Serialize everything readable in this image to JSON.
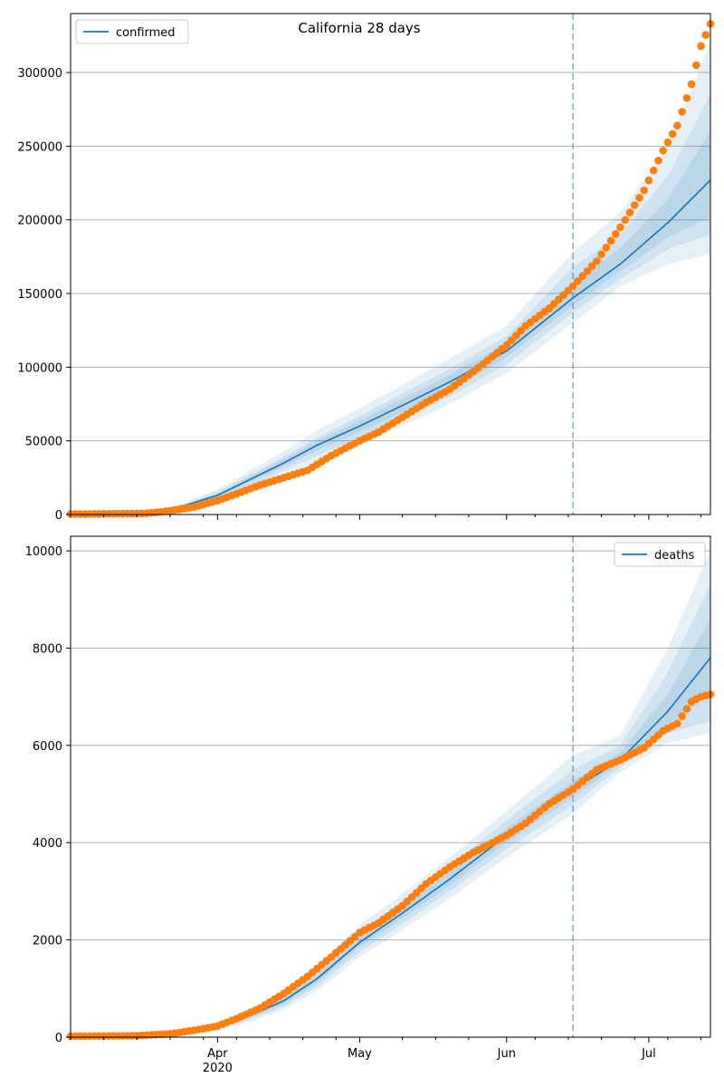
{
  "title": "California 28 days",
  "colors": {
    "model": "#1f77b4",
    "observed": "#ff7f0e",
    "band": "#1f77b4",
    "cutoff": "#1f77b4",
    "grid": "#b0b0b0"
  },
  "chart_data": [
    {
      "type": "line",
      "panel": "top",
      "legend": "top-left",
      "legend_label": "confirmed",
      "x_range": [
        "2020-03-01",
        "2020-07-14"
      ],
      "ylim": [
        0,
        340000
      ],
      "yticks": [
        0,
        50000,
        100000,
        150000,
        200000,
        250000,
        300000
      ],
      "ytick_labels": [
        "0",
        "50000",
        "100000",
        "150000",
        "200000",
        "250000",
        "300000"
      ],
      "grid": "horizontal",
      "forecast_start": "2020-06-15",
      "model": {
        "x": [
          "2020-03-01",
          "2020-03-15",
          "2020-03-20",
          "2020-03-25",
          "2020-04-01",
          "2020-04-08",
          "2020-04-15",
          "2020-04-22",
          "2020-05-01",
          "2020-05-10",
          "2020-05-20",
          "2020-06-01",
          "2020-06-15",
          "2020-06-25",
          "2020-07-05",
          "2020-07-14"
        ],
        "y": [
          0,
          1500,
          3000,
          6000,
          13000,
          24000,
          35000,
          47000,
          60000,
          74000,
          90000,
          111000,
          147000,
          170000,
          198000,
          227000
        ]
      },
      "bands": [
        {
          "lower": [
            0,
            1200,
            2500,
            4500,
            10000,
            18000,
            27000,
            36000,
            48000,
            60000,
            75000,
            96000,
            130000,
            155000,
            170000,
            177000
          ],
          "upper": [
            0,
            1800,
            3800,
            8000,
            17000,
            30000,
            43000,
            57000,
            72000,
            88000,
            106000,
            128000,
            178000,
            205000,
            250000,
            320000
          ]
        },
        {
          "lower": [
            0,
            1300,
            2700,
            5000,
            11000,
            20000,
            30000,
            40000,
            52000,
            65000,
            80000,
            102000,
            137000,
            160000,
            180000,
            190000
          ],
          "upper": [
            0,
            1700,
            3400,
            7200,
            15500,
            27500,
            39500,
            52000,
            67000,
            82000,
            99000,
            121000,
            168000,
            190000,
            230000,
            285000
          ]
        },
        {
          "lower": [
            0,
            1400,
            2800,
            5500,
            12000,
            22000,
            32500,
            43500,
            56000,
            69500,
            85000,
            106500,
            142000,
            165000,
            188000,
            202000
          ],
          "upper": [
            0,
            1600,
            3200,
            6600,
            14200,
            26000,
            37500,
            50000,
            64000,
            78500,
            95000,
            116000,
            157000,
            181000,
            214000,
            260000
          ]
        }
      ],
      "observed": {
        "x": [
          "2020-03-01",
          "2020-03-10",
          "2020-03-17",
          "2020-03-22",
          "2020-03-27",
          "2020-04-01",
          "2020-04-05",
          "2020-04-10",
          "2020-04-15",
          "2020-04-20",
          "2020-04-25",
          "2020-05-01",
          "2020-05-05",
          "2020-05-10",
          "2020-05-15",
          "2020-05-20",
          "2020-05-25",
          "2020-06-01",
          "2020-06-05",
          "2020-06-10",
          "2020-06-15",
          "2020-06-20",
          "2020-06-25",
          "2020-06-30",
          "2020-07-04",
          "2020-07-07",
          "2020-07-10",
          "2020-07-12",
          "2020-07-14"
        ],
        "y": [
          300,
          500,
          800,
          2500,
          5000,
          9500,
          14000,
          20000,
          25000,
          30000,
          40000,
          50000,
          56000,
          66000,
          76000,
          85000,
          97000,
          115000,
          128000,
          140000,
          155000,
          172000,
          195000,
          220000,
          247000,
          264000,
          292000,
          318000,
          333000
        ]
      }
    },
    {
      "type": "line",
      "panel": "bottom",
      "legend": "top-right",
      "legend_label": "deaths",
      "x_range": [
        "2020-03-01",
        "2020-07-14"
      ],
      "ylim": [
        0,
        10300
      ],
      "yticks": [
        0,
        2000,
        4000,
        6000,
        8000,
        10000
      ],
      "ytick_labels": [
        "0",
        "2000",
        "4000",
        "6000",
        "8000",
        "10000"
      ],
      "xticks": [
        "2020-04-01",
        "2020-05-01",
        "2020-06-01",
        "2020-07-01"
      ],
      "xtick_labels": [
        "Apr",
        "May",
        "Jun",
        "Jul"
      ],
      "x_year_label": "2020",
      "grid": "horizontal",
      "forecast_start": "2020-06-15",
      "model": {
        "x": [
          "2020-03-01",
          "2020-03-15",
          "2020-03-25",
          "2020-04-01",
          "2020-04-08",
          "2020-04-15",
          "2020-04-22",
          "2020-05-01",
          "2020-05-10",
          "2020-05-20",
          "2020-06-01",
          "2020-06-15",
          "2020-06-25",
          "2020-07-05",
          "2020-07-14"
        ],
        "y": [
          0,
          30,
          90,
          230,
          450,
          750,
          1200,
          1950,
          2550,
          3250,
          4150,
          5100,
          5700,
          6700,
          7800
        ]
      },
      "bands": [
        {
          "lower": [
            0,
            20,
            60,
            160,
            320,
            560,
            950,
            1650,
            2200,
            2850,
            3700,
            4600,
            5450,
            6050,
            6250
          ],
          "upper": [
            0,
            40,
            120,
            300,
            580,
            940,
            1450,
            2300,
            2950,
            3700,
            4650,
            5800,
            6200,
            8000,
            10000
          ]
        },
        {
          "lower": [
            0,
            24,
            70,
            185,
            370,
            630,
            1040,
            1760,
            2330,
            3000,
            3870,
            4780,
            5550,
            6250,
            6500
          ],
          "upper": [
            0,
            36,
            110,
            275,
            530,
            870,
            1360,
            2170,
            2800,
            3530,
            4460,
            5500,
            6000,
            7500,
            9300
          ]
        },
        {
          "lower": [
            0,
            27,
            80,
            210,
            410,
            690,
            1120,
            1860,
            2440,
            3120,
            4010,
            4940,
            5630,
            6450,
            7050
          ],
          "upper": [
            0,
            33,
            100,
            250,
            490,
            810,
            1280,
            2060,
            2670,
            3390,
            4300,
            5270,
            5850,
            7050,
            8600
          ]
        }
      ],
      "observed": {
        "x": [
          "2020-03-01",
          "2020-03-15",
          "2020-03-22",
          "2020-03-27",
          "2020-04-01",
          "2020-04-05",
          "2020-04-10",
          "2020-04-15",
          "2020-04-20",
          "2020-04-25",
          "2020-05-01",
          "2020-05-05",
          "2020-05-10",
          "2020-05-15",
          "2020-05-20",
          "2020-05-25",
          "2020-06-01",
          "2020-06-05",
          "2020-06-10",
          "2020-06-15",
          "2020-06-20",
          "2020-06-25",
          "2020-06-30",
          "2020-07-04",
          "2020-07-07",
          "2020-07-10",
          "2020-07-12",
          "2020-07-14"
        ],
        "y": [
          20,
          30,
          70,
          140,
          230,
          380,
          600,
          900,
          1250,
          1650,
          2150,
          2350,
          2700,
          3150,
          3500,
          3800,
          4150,
          4400,
          4800,
          5100,
          5500,
          5700,
          5950,
          6300,
          6450,
          6900,
          7000,
          7050
        ]
      }
    }
  ]
}
